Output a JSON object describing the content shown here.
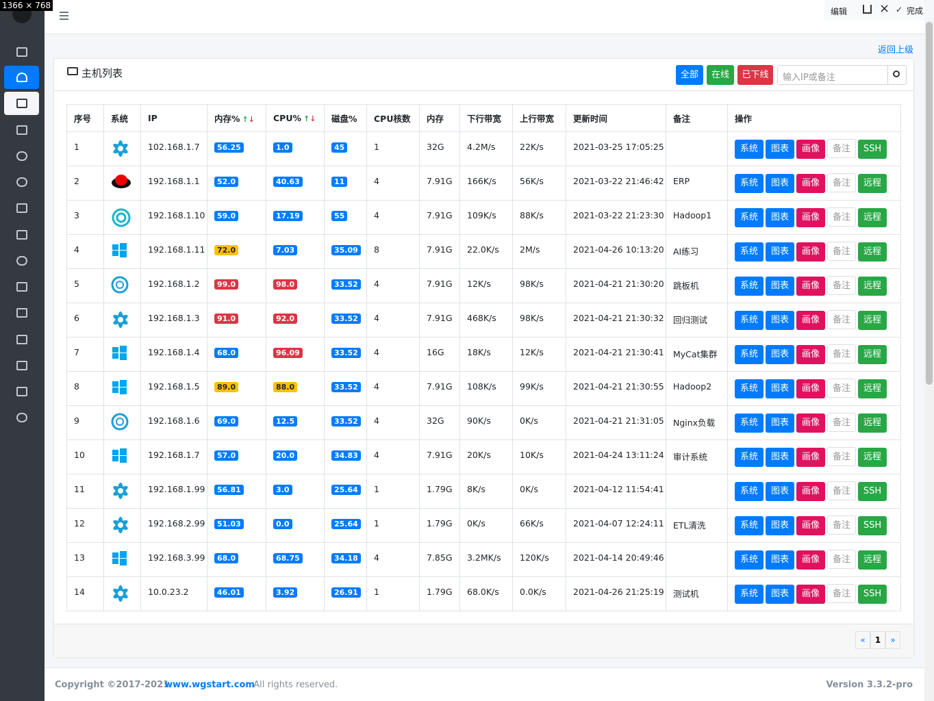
{
  "overlay": "1366 × 768",
  "toolbar": {
    "edit": "编辑",
    "done": "完成"
  },
  "header": {
    "back": "返回上级",
    "title": "主机列表",
    "filters": [
      "全部",
      "在线",
      "已下线"
    ],
    "search_placeholder": "输入IP或备注"
  },
  "table": {
    "columns": [
      "序号",
      "系统",
      "IP",
      "内存%",
      "CPU%",
      "磁盘%",
      "CPU核数",
      "内存",
      "下行带宽",
      "上行带宽",
      "更新时间",
      "备注",
      "操作"
    ],
    "actions": [
      "系统",
      "图表",
      "画像",
      "备注"
    ],
    "rows": [
      {
        "no": "1",
        "ip": "102.168.1.7",
        "mem": "56.25",
        "cpu": "1.0",
        "disk": "45",
        "cores": "1",
        "ram": "32G",
        "down": "4.2M/s",
        "up": "22K/s",
        "updated": "2021-03-25 17:05:25",
        "remote": "SSH"
      },
      {
        "no": "2",
        "ip": "192.168.1.1",
        "mem": "52.0",
        "cpu": "40.63",
        "disk": "11",
        "cores": "4",
        "ram": "7.91G",
        "down": "166K/s",
        "up": "56K/s",
        "updated": "2021-03-22 21:46:42",
        "note": "ERP",
        "remote": "远程"
      },
      {
        "no": "3",
        "ip": "192.168.1.10",
        "mem": "59.0",
        "cpu": "17.19",
        "disk": "55",
        "cores": "4",
        "ram": "7.91G",
        "down": "109K/s",
        "up": "88K/s",
        "updated": "2021-03-22 21:23:30",
        "note": "Hadoop1",
        "remote": "远程"
      },
      {
        "no": "4",
        "ip": "192.168.1.11",
        "mem": "72.0",
        "cpu": "7.03",
        "disk": "35.09",
        "cores": "8",
        "ram": "7.91G",
        "down": "22.0K/s",
        "up": "2M/s",
        "updated": "2021-04-26 10:13:20",
        "note": "AI练习",
        "remote": "远程"
      },
      {
        "no": "5",
        "ip": "192.168.1.2",
        "mem": "99.0",
        "cpu": "98.0",
        "disk": "33.52",
        "cores": "4",
        "ram": "7.91G",
        "down": "12K/s",
        "up": "98K/s",
        "updated": "2021-04-21 21:30:20",
        "note": "跳板机",
        "remote": "远程"
      },
      {
        "no": "6",
        "ip": "192.168.1.3",
        "mem": "91.0",
        "cpu": "92.0",
        "disk": "33.52",
        "cores": "4",
        "ram": "7.91G",
        "down": "468K/s",
        "up": "98K/s",
        "updated": "2021-04-21 21:30:32",
        "note": "回归测试",
        "remote": "远程"
      },
      {
        "no": "7",
        "ip": "192.168.1.4",
        "mem": "68.0",
        "cpu": "96.09",
        "disk": "33.52",
        "cores": "4",
        "ram": "16G",
        "down": "18K/s",
        "up": "12K/s",
        "updated": "2021-04-21 21:30:41",
        "note": "MyCat集群",
        "remote": "远程"
      },
      {
        "no": "8",
        "ip": "192.168.1.5",
        "mem": "89.0",
        "cpu": "88.0",
        "disk": "33.52",
        "cores": "4",
        "ram": "7.91G",
        "down": "108K/s",
        "up": "99K/s",
        "updated": "2021-04-21 21:30:55",
        "note": "Hadoop2",
        "remote": "远程"
      },
      {
        "no": "9",
        "ip": "192.168.1.6",
        "mem": "69.0",
        "cpu": "12.5",
        "disk": "33.52",
        "cores": "4",
        "ram": "32G",
        "down": "90K/s",
        "up": "0K/s",
        "updated": "2021-04-21 21:31:05",
        "note": "Nginx负载",
        "remote": "远程"
      },
      {
        "no": "10",
        "ip": "192.168.1.7",
        "mem": "57.0",
        "cpu": "20.0",
        "disk": "34.83",
        "cores": "4",
        "ram": "7.91G",
        "down": "20K/s",
        "up": "10K/s",
        "updated": "2021-04-24 13:11:24",
        "note": "审计系统",
        "remote": "远程"
      },
      {
        "no": "11",
        "ip": "192.168.1.99",
        "mem": "56.81",
        "cpu": "3.0",
        "disk": "25.64",
        "cores": "1",
        "ram": "1.79G",
        "down": "8K/s",
        "up": "0K/s",
        "updated": "2021-04-12 11:54:41",
        "remote": "SSH"
      },
      {
        "no": "12",
        "ip": "192.168.2.99",
        "mem": "51.03",
        "cpu": "0.0",
        "disk": "25.64",
        "cores": "1",
        "ram": "1.79G",
        "down": "0K/s",
        "up": "66K/s",
        "updated": "2021-04-07 12:24:11",
        "note": "ETL清洗",
        "remote": "SSH"
      },
      {
        "no": "13",
        "ip": "192.168.3.99",
        "mem": "68.0",
        "cpu": "68.75",
        "disk": "34.18",
        "cores": "4",
        "ram": "7.85G",
        "down": "3.2MK/s",
        "up": "120K/s",
        "updated": "2021-04-14 20:49:46",
        "remote": "远程"
      },
      {
        "no": "14",
        "ip": "10.0.23.2",
        "mem": "46.01",
        "cpu": "3.92",
        "disk": "26.91",
        "cores": "1",
        "ram": "1.79G",
        "down": "68.0K/s",
        "up": "0.0K/s",
        "updated": "2021-04-26 21:25:19",
        "note": "测试机",
        "remote": "SSH"
      }
    ]
  },
  "pagination": [
    "«",
    "1",
    "»"
  ],
  "footer": {
    "copyright": "Copyright ©2017-2021",
    "site": "www.wgstart.com",
    "rights": ". All rights reserved.",
    "version": "Version 3.3.2-pro"
  }
}
